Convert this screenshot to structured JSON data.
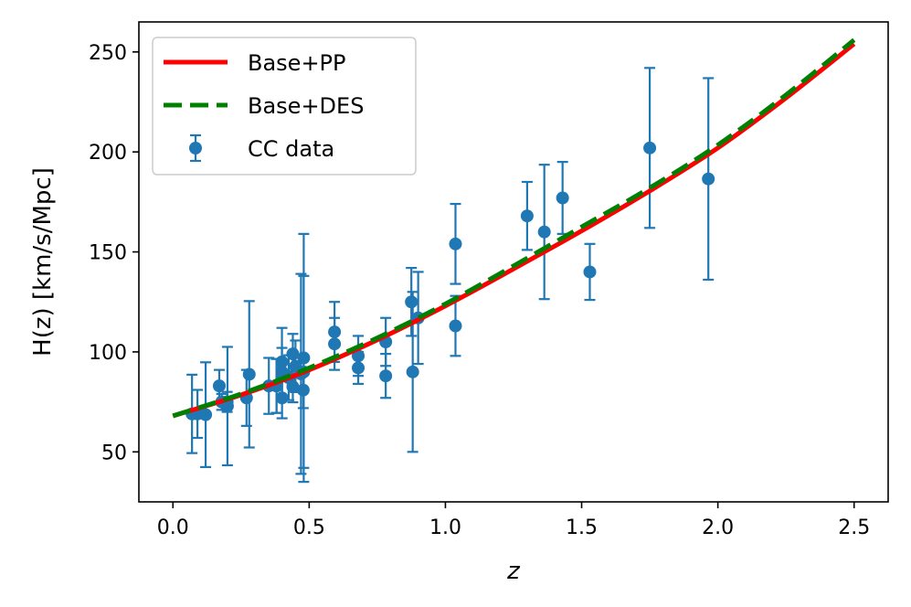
{
  "chart_data": {
    "type": "line",
    "title": "",
    "xlabel": "z",
    "ylabel": "H(z) [km/s/Mpc]",
    "xlim": [
      -0.125,
      2.625
    ],
    "ylim": [
      25,
      265
    ],
    "xticks": [
      0.0,
      0.5,
      1.0,
      1.5,
      2.0,
      2.5
    ],
    "xtick_labels": [
      "0.0",
      "0.5",
      "1.0",
      "1.5",
      "2.0",
      "2.5"
    ],
    "yticks": [
      50,
      100,
      150,
      200,
      250
    ],
    "ytick_labels": [
      "50",
      "100",
      "150",
      "200",
      "250"
    ],
    "grid": false,
    "legend_position": "top-left",
    "series": [
      {
        "name": "Base+PP",
        "type": "line",
        "style": "solid",
        "color": "#ff0000",
        "x": [
          0.0,
          0.25,
          0.5,
          0.75,
          1.0,
          1.25,
          1.5,
          1.75,
          2.0,
          2.25,
          2.5
        ],
        "y": [
          68,
          78.5,
          91,
          106,
          123,
          141.5,
          160.5,
          180.5,
          202,
          227,
          254
        ]
      },
      {
        "name": "Base+DES",
        "type": "line",
        "style": "dashed",
        "color": "#008000",
        "x": [
          0.0,
          0.25,
          0.5,
          0.75,
          1.0,
          1.25,
          1.5,
          1.75,
          2.0,
          2.25,
          2.5
        ],
        "y": [
          68,
          79,
          92,
          107,
          124,
          143,
          162.5,
          182,
          203.5,
          228.5,
          256
        ]
      },
      {
        "name": "CC data",
        "type": "errorbar",
        "color": "#1f77b4",
        "points": [
          {
            "x": 0.07,
            "y": 69,
            "err": 19.6
          },
          {
            "x": 0.09,
            "y": 69,
            "err": 12
          },
          {
            "x": 0.12,
            "y": 68.6,
            "err": 26.2
          },
          {
            "x": 0.17,
            "y": 83,
            "err": 8
          },
          {
            "x": 0.179,
            "y": 75,
            "err": 4
          },
          {
            "x": 0.199,
            "y": 75,
            "err": 5
          },
          {
            "x": 0.2,
            "y": 72.9,
            "err": 29.6
          },
          {
            "x": 0.27,
            "y": 77,
            "err": 14
          },
          {
            "x": 0.28,
            "y": 88.8,
            "err": 36.6
          },
          {
            "x": 0.352,
            "y": 83,
            "err": 14
          },
          {
            "x": 0.38,
            "y": 83,
            "err": 13.5
          },
          {
            "x": 0.3802,
            "y": 83,
            "err": 13.5
          },
          {
            "x": 0.4,
            "y": 95,
            "err": 17
          },
          {
            "x": 0.4004,
            "y": 77,
            "err": 10.2
          },
          {
            "x": 0.4247,
            "y": 87.1,
            "err": 11.2
          },
          {
            "x": 0.44,
            "y": 82.6,
            "err": 7.8
          },
          {
            "x": 0.4497,
            "y": 92.8,
            "err": 12.9
          },
          {
            "x": 0.47,
            "y": 89,
            "err": 50
          },
          {
            "x": 0.4783,
            "y": 80.9,
            "err": 9
          },
          {
            "x": 0.48,
            "y": 97,
            "err": 62
          },
          {
            "x": 0.593,
            "y": 104,
            "err": 13
          },
          {
            "x": 0.68,
            "y": 92,
            "err": 8
          },
          {
            "x": 0.781,
            "y": 105,
            "err": 12
          },
          {
            "x": 0.875,
            "y": 125,
            "err": 17
          },
          {
            "x": 0.88,
            "y": 90,
            "err": 40
          },
          {
            "x": 0.9,
            "y": 117,
            "err": 23
          },
          {
            "x": 1.037,
            "y": 154,
            "err": 20
          },
          {
            "x": 1.3,
            "y": 168,
            "err": 17
          },
          {
            "x": 1.363,
            "y": 160,
            "err": 33.6
          },
          {
            "x": 1.43,
            "y": 177,
            "err": 18
          },
          {
            "x": 1.53,
            "y": 140,
            "err": 14
          },
          {
            "x": 1.75,
            "y": 202,
            "err": 40
          },
          {
            "x": 1.965,
            "y": 186.5,
            "err": 50.4
          },
          {
            "x": 0.593,
            "y": 110,
            "err": 15
          },
          {
            "x": 0.68,
            "y": 98,
            "err": 10
          },
          {
            "x": 0.781,
            "y": 88,
            "err": 11
          },
          {
            "x": 1.037,
            "y": 113,
            "err": 15
          },
          {
            "x": 0.4,
            "y": 90,
            "err": 12
          },
          {
            "x": 0.44,
            "y": 99,
            "err": 10
          },
          {
            "x": 0.48,
            "y": 90,
            "err": 48
          }
        ]
      }
    ]
  }
}
